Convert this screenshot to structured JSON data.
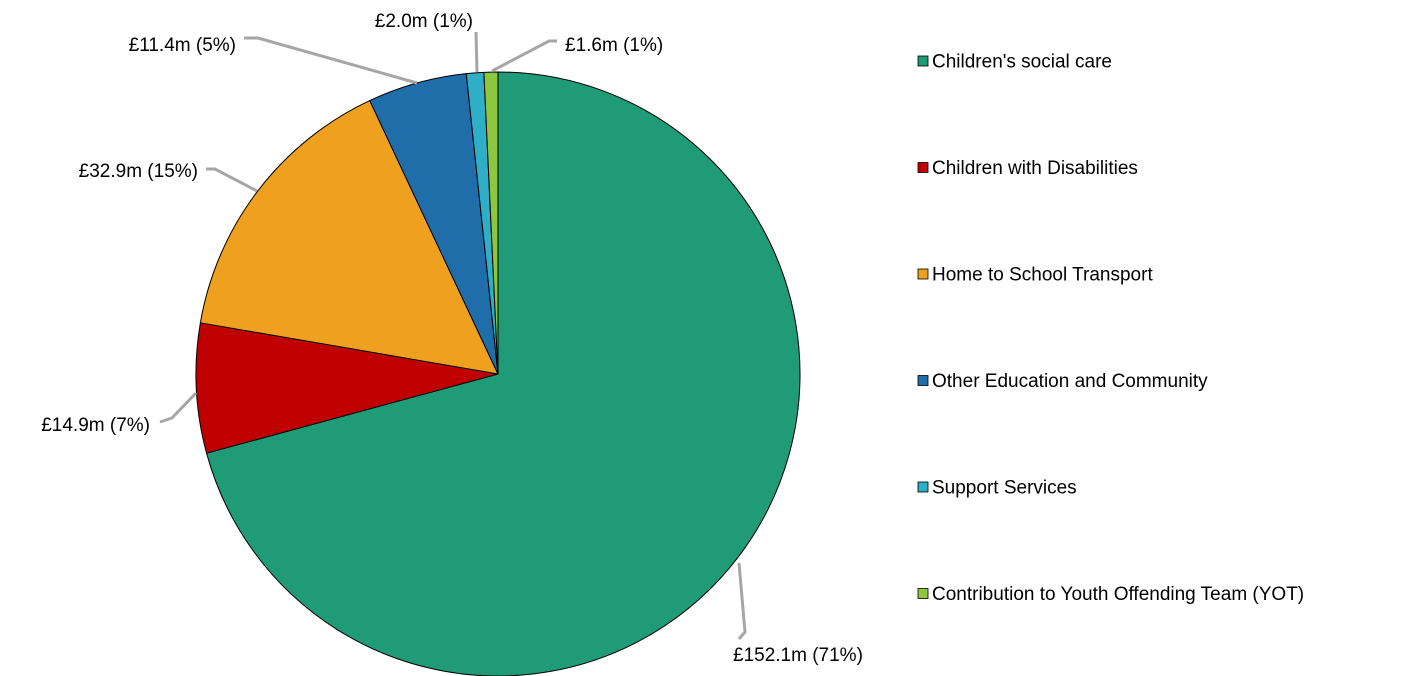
{
  "chart_data": {
    "type": "pie",
    "title": "",
    "unit": "£m",
    "start_angle": "12 o'clock",
    "direction": "clockwise",
    "legend_position": "right",
    "slices": [
      {
        "name": "Children's social care",
        "value": 152.1,
        "percent": 71,
        "label": "£152.1m (71%)",
        "color": "#1f9b78"
      },
      {
        "name": "Children with Disabilities",
        "value": 14.9,
        "percent": 7,
        "label": "£14.9m (7%)",
        "color": "#c00000"
      },
      {
        "name": "Home to School Transport",
        "value": 32.9,
        "percent": 15,
        "label": "£32.9m (15%)",
        "color": "#f0a01f"
      },
      {
        "name": "Other Education and Community",
        "value": 11.4,
        "percent": 5,
        "label": "£11.4m (5%)",
        "color": "#1f6ea9"
      },
      {
        "name": "Support Services",
        "value": 2.0,
        "percent": 1,
        "label": "£2.0m (1%)",
        "color": "#2eafc7"
      },
      {
        "name": "Contribution to Youth Offending Team (YOT)",
        "value": 1.6,
        "percent": 1,
        "label": "£1.6m (1%)",
        "color": "#8dc63f"
      }
    ],
    "leader_line_color": "#a6a6a6",
    "slice_border_color": "#000000"
  }
}
